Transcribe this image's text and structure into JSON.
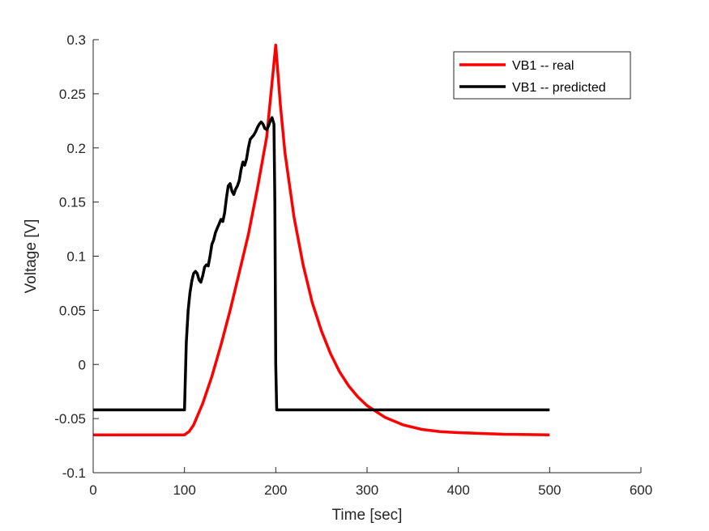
{
  "chart_data": {
    "type": "line",
    "xlabel": "Time [sec]",
    "ylabel": "Voltage [V]",
    "xlim": [
      0,
      600
    ],
    "ylim": [
      -0.1,
      0.3
    ],
    "xticks": [
      0,
      100,
      200,
      300,
      400,
      500,
      600
    ],
    "yticks": [
      -0.1,
      -0.05,
      0,
      0.05,
      0.1,
      0.15,
      0.2,
      0.25,
      0.3
    ],
    "xtick_labels": [
      "0",
      "100",
      "200",
      "300",
      "400",
      "500",
      "600"
    ],
    "ytick_labels": [
      "-0.1",
      "-0.05",
      "0",
      "0.05",
      "0.1",
      "0.15",
      "0.2",
      "0.25",
      "0.3"
    ],
    "grid": false,
    "legend_position": "top-right",
    "series": [
      {
        "name": "VB1 -- real",
        "color": "#ff0000",
        "x": [
          0,
          100,
          105,
          110,
          120,
          130,
          140,
          150,
          160,
          170,
          180,
          190,
          200,
          205,
          210,
          220,
          230,
          240,
          250,
          260,
          270,
          280,
          290,
          300,
          320,
          340,
          360,
          380,
          400,
          450,
          500
        ],
        "y": [
          -0.065,
          -0.065,
          -0.062,
          -0.056,
          -0.036,
          -0.011,
          0.018,
          0.05,
          0.085,
          0.12,
          0.163,
          0.21,
          0.295,
          0.24,
          0.196,
          0.136,
          0.092,
          0.057,
          0.031,
          0.01,
          -0.007,
          -0.02,
          -0.03,
          -0.038,
          -0.049,
          -0.056,
          -0.06,
          -0.062,
          -0.063,
          -0.0645,
          -0.065
        ]
      },
      {
        "name": "VB1 -- predicted",
        "color": "#000000",
        "x": [
          0,
          99,
          100,
          102,
          104,
          106,
          108,
          110,
          112,
          114,
          116,
          118,
          120,
          122,
          124,
          126,
          128,
          130,
          132,
          134,
          136,
          138,
          140,
          142,
          144,
          146,
          148,
          150,
          152,
          154,
          156,
          158,
          160,
          162,
          164,
          166,
          168,
          170,
          172,
          174,
          176,
          178,
          180,
          182,
          184,
          186,
          188,
          190,
          192,
          194,
          196,
          198,
          199,
          200,
          201,
          500
        ],
        "y": [
          -0.042,
          -0.042,
          -0.042,
          0.02,
          0.05,
          0.066,
          0.077,
          0.084,
          0.086,
          0.084,
          0.078,
          0.076,
          0.082,
          0.09,
          0.092,
          0.091,
          0.1,
          0.111,
          0.115,
          0.122,
          0.126,
          0.13,
          0.134,
          0.132,
          0.14,
          0.154,
          0.165,
          0.167,
          0.16,
          0.157,
          0.162,
          0.165,
          0.17,
          0.18,
          0.187,
          0.184,
          0.19,
          0.2,
          0.208,
          0.21,
          0.212,
          0.215,
          0.219,
          0.222,
          0.224,
          0.222,
          0.218,
          0.217,
          0.22,
          0.225,
          0.228,
          0.222,
          0.15,
          0.0,
          -0.042,
          -0.042
        ]
      }
    ]
  }
}
